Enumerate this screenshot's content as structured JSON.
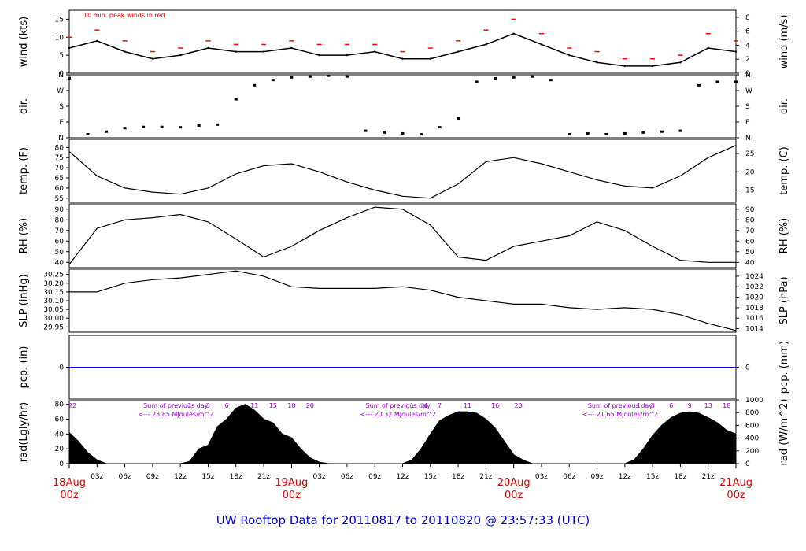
{
  "footer": {
    "title": "UW Rooftop Data for 20110817  to  20110820 @ 23:57:33  (UTC)"
  },
  "chart_data": [
    {
      "type": "line",
      "panel": "wind",
      "ylabel_left": "wind (kts)",
      "ylabel_right": "wind (m/s)",
      "ylim": [
        0,
        17.5
      ],
      "yticks_left": [
        0,
        5,
        10,
        15
      ],
      "yticks_right_labels": [
        "0",
        "2",
        "4",
        "6",
        "8"
      ],
      "yticks_right_values_kts": [
        0,
        3.89,
        7.78,
        11.66,
        15.55
      ],
      "annotation": "10 min. peak winds in red",
      "colors": {
        "line": "#000000",
        "peak": "#ff0000"
      },
      "series": [
        {
          "name": "",
          "x_hours": [
            0,
            3,
            6,
            9,
            12,
            15,
            18,
            21,
            24,
            27,
            30,
            33,
            36,
            39,
            42,
            45,
            48,
            51,
            54,
            57,
            60,
            63,
            66,
            69,
            72
          ],
          "values": [
            7,
            9,
            6,
            4,
            5,
            7,
            6,
            6,
            7,
            5,
            5,
            6,
            4,
            4,
            6,
            8,
            11,
            8,
            5,
            3,
            2,
            2,
            3,
            7,
            6
          ]
        },
        {
          "name": "",
          "x_hours": [
            0,
            3,
            6,
            9,
            12,
            15,
            18,
            21,
            24,
            27,
            30,
            33,
            36,
            39,
            42,
            45,
            48,
            51,
            54,
            57,
            60,
            63,
            66,
            69,
            72
          ],
          "values": [
            10,
            12,
            9,
            6,
            7,
            9,
            8,
            8,
            9,
            8,
            8,
            8,
            6,
            7,
            9,
            12,
            15,
            11,
            7,
            6,
            4,
            4,
            5,
            11,
            9
          ]
        }
      ]
    },
    {
      "type": "scatter",
      "panel": "direction",
      "ylabel_left": "dir.",
      "ylabel_right": "dir.",
      "ytick_labels": [
        "N",
        "W",
        "S",
        "E",
        "N"
      ],
      "ylim": [
        0,
        360
      ],
      "x_hours": [
        0,
        2,
        4,
        6,
        8,
        10,
        12,
        14,
        16,
        18,
        20,
        22,
        24,
        26,
        28,
        30,
        32,
        34,
        36,
        38,
        40,
        42,
        44,
        46,
        48,
        50,
        52,
        54,
        56,
        58,
        60,
        62,
        64,
        66,
        68,
        70,
        72
      ],
      "values": [
        340,
        20,
        35,
        55,
        62,
        62,
        60,
        70,
        75,
        220,
        300,
        330,
        345,
        350,
        355,
        350,
        40,
        30,
        25,
        20,
        60,
        110,
        320,
        340,
        345,
        350,
        330,
        20,
        25,
        20,
        25,
        30,
        35,
        40,
        300,
        320,
        320
      ]
    },
    {
      "type": "line",
      "panel": "temperature",
      "ylabel_left": "temp. (F)",
      "ylabel_right": "temp. (C)",
      "ylim": [
        53,
        84
      ],
      "yticks_left": [
        55,
        60,
        65,
        70,
        75,
        80
      ],
      "yticks_right_labels": [
        "15",
        "20",
        "25"
      ],
      "yticks_right_values_f": [
        59,
        68,
        77
      ],
      "x_hours": [
        0,
        3,
        6,
        9,
        12,
        15,
        18,
        21,
        24,
        27,
        30,
        33,
        36,
        39,
        42,
        45,
        48,
        51,
        54,
        57,
        60,
        63,
        66,
        69,
        72
      ],
      "values": [
        78,
        66,
        60,
        58,
        57,
        60,
        67,
        71,
        72,
        68,
        63,
        59,
        56,
        55,
        62,
        73,
        75,
        72,
        68,
        64,
        61,
        60,
        66,
        75,
        81
      ]
    },
    {
      "type": "line",
      "panel": "relative-humidity",
      "ylabel_left": "RH (%)",
      "ylabel_right": "RH (%)",
      "ylim": [
        35,
        95
      ],
      "yticks_left": [
        40,
        50,
        60,
        70,
        80,
        90
      ],
      "yticks_right_labels": [
        "40",
        "50",
        "60",
        "70",
        "80",
        "90"
      ],
      "yticks_right_values": [
        40,
        50,
        60,
        70,
        80,
        90
      ],
      "x_hours": [
        0,
        3,
        6,
        9,
        12,
        15,
        18,
        21,
        24,
        27,
        30,
        33,
        36,
        39,
        42,
        45,
        48,
        51,
        54,
        57,
        60,
        63,
        66,
        69,
        72
      ],
      "values": [
        38,
        72,
        80,
        82,
        85,
        78,
        62,
        45,
        55,
        70,
        82,
        92,
        90,
        75,
        45,
        42,
        55,
        60,
        65,
        78,
        70,
        55,
        42,
        40,
        40
      ]
    },
    {
      "type": "line",
      "panel": "sea-level-pressure",
      "ylabel_left": "SLP (inHg)",
      "ylabel_right": "SLP (hPa)",
      "ylim": [
        29.92,
        30.28
      ],
      "yticks_left": [
        29.95,
        30.0,
        30.05,
        30.1,
        30.15,
        30.2,
        30.25
      ],
      "yticks_left_labels": [
        "29.95",
        "30.00",
        "30.05",
        "30.10",
        "30.15",
        "30.20",
        "30.25"
      ],
      "yticks_right_labels": [
        "1014",
        "1016",
        "1018",
        "1020",
        "1022",
        "1024"
      ],
      "yticks_right_values_inhg": [
        29.94,
        30.0,
        30.06,
        30.12,
        30.18,
        30.24
      ],
      "x_hours": [
        0,
        3,
        6,
        9,
        12,
        15,
        18,
        21,
        24,
        27,
        30,
        33,
        36,
        39,
        42,
        45,
        48,
        51,
        54,
        57,
        60,
        63,
        66,
        69,
        72
      ],
      "values": [
        30.15,
        30.15,
        30.2,
        30.22,
        30.23,
        30.25,
        30.27,
        30.24,
        30.18,
        30.17,
        30.17,
        30.17,
        30.18,
        30.16,
        30.12,
        30.1,
        30.08,
        30.08,
        30.06,
        30.05,
        30.06,
        30.05,
        30.02,
        29.97,
        29.93
      ]
    },
    {
      "type": "line",
      "panel": "precipitation",
      "ylabel_left": "pcp. (in)",
      "ylabel_right": "pcp. (mm)",
      "ytick_left_label": "0",
      "ytick_right_label": "0",
      "colors": {
        "line": "#0000cc"
      },
      "x_hours": [
        0,
        72
      ],
      "values": [
        0,
        0
      ]
    },
    {
      "type": "area",
      "panel": "radiation",
      "ylabel_left": "rad(Lgly/hr)",
      "ylabel_right": "rad (W/m^2)",
      "ylim": [
        0,
        85
      ],
      "yticks_left": [
        0,
        20,
        40,
        60,
        80
      ],
      "yticks_right_labels": [
        "0",
        "200",
        "400",
        "600",
        "800",
        "1000"
      ],
      "yticks_right_values": [
        0,
        17.2,
        34.4,
        51.6,
        68.8,
        86
      ],
      "sum_labels": [
        {
          "heading": "Sum of previous day",
          "value": "<--- 23.85 MJoules/m^2"
        },
        {
          "heading": "Sum of previous day",
          "value": "<--- 20.32 MJoules/m^2"
        },
        {
          "heading": "Sum of previous day",
          "value": "<--- 21.65 MJoules/m^2"
        }
      ],
      "hour_labels": [
        {
          "hour": 0,
          "label": "22"
        },
        {
          "hour": 13,
          "label": "1"
        },
        {
          "hour": 15,
          "label": "3"
        },
        {
          "hour": 17,
          "label": "6"
        },
        {
          "hour": 20,
          "label": "11"
        },
        {
          "hour": 22,
          "label": "15"
        },
        {
          "hour": 24,
          "label": "18"
        },
        {
          "hour": 26,
          "label": "20"
        },
        {
          "hour": 37,
          "label": "1"
        },
        {
          "hour": 38.5,
          "label": "4"
        },
        {
          "hour": 40,
          "label": "7"
        },
        {
          "hour": 43,
          "label": "11"
        },
        {
          "hour": 46,
          "label": "16"
        },
        {
          "hour": 48.5,
          "label": "20"
        },
        {
          "hour": 61.5,
          "label": "1"
        },
        {
          "hour": 63,
          "label": "3"
        },
        {
          "hour": 65,
          "label": "6"
        },
        {
          "hour": 67,
          "label": "9"
        },
        {
          "hour": 69,
          "label": "13"
        },
        {
          "hour": 71,
          "label": "18"
        }
      ],
      "x_hours": [
        0,
        1,
        2,
        3,
        4,
        12,
        13,
        14,
        15,
        16,
        17,
        18,
        19,
        20,
        21,
        22,
        23,
        24,
        25,
        26,
        27,
        28,
        36,
        37,
        38,
        39,
        40,
        41,
        42,
        43,
        44,
        45,
        46,
        47,
        48,
        49,
        50,
        60,
        61,
        62,
        63,
        64,
        65,
        66,
        67,
        68,
        69,
        70,
        71,
        72
      ],
      "values": [
        42,
        30,
        15,
        5,
        0,
        0,
        3,
        20,
        25,
        50,
        60,
        75,
        80,
        72,
        60,
        55,
        40,
        35,
        20,
        8,
        2,
        0,
        0,
        5,
        20,
        40,
        58,
        65,
        70,
        70,
        68,
        60,
        48,
        30,
        12,
        5,
        0,
        0,
        5,
        20,
        38,
        52,
        62,
        68,
        70,
        68,
        62,
        55,
        45,
        40
      ]
    }
  ],
  "x_axis": {
    "minor_labels": [
      "03z",
      "06z",
      "09z",
      "12z",
      "15z",
      "18z",
      "21z",
      "03z",
      "06z",
      "09z",
      "12z",
      "15z",
      "18z",
      "21z",
      "03z",
      "06z",
      "09z",
      "12z",
      "15z",
      "18z",
      "21z"
    ],
    "minor_hours": [
      3,
      6,
      9,
      12,
      15,
      18,
      21,
      27,
      30,
      33,
      36,
      39,
      42,
      45,
      51,
      54,
      57,
      60,
      63,
      66,
      69
    ],
    "day_labels": [
      {
        "hour": 0,
        "date": "18Aug",
        "time": "00z"
      },
      {
        "hour": 24,
        "date": "19Aug",
        "time": "00z"
      },
      {
        "hour": 48,
        "date": "20Aug",
        "time": "00z"
      },
      {
        "hour": 72,
        "date": "21Aug",
        "time": "00z"
      }
    ],
    "xlim_hours": [
      0,
      72
    ]
  }
}
